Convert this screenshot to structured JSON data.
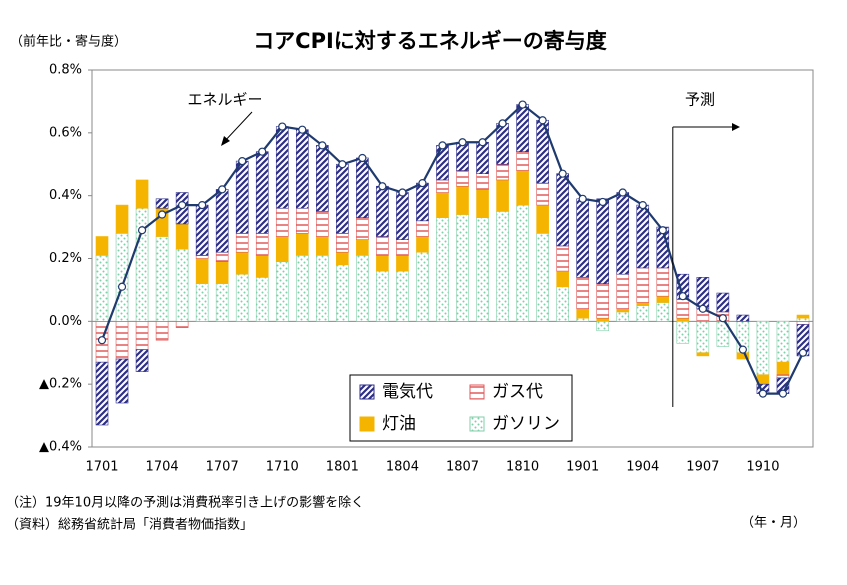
{
  "chart_data": {
    "type": "stacked-bar-line",
    "title": "コアCPIに対するエネルギーの寄与度",
    "y_unit_label": "（前年比・寄与度）",
    "x_unit_label": "（年・月）",
    "annotations": [
      "エネルギー",
      "予測"
    ],
    "notes": [
      "（注）19年10月以降の予測は消費税率引き上げの影響を除く",
      "（資料）総務省統計局「消費者物価指数」"
    ],
    "categories": [
      "1701",
      null,
      null,
      "1704",
      null,
      null,
      "1707",
      null,
      null,
      "1710",
      null,
      null,
      "1801",
      null,
      null,
      "1804",
      null,
      null,
      "1807",
      null,
      null,
      "1810",
      null,
      null,
      "1901",
      null,
      null,
      "1904",
      null,
      null,
      "1907",
      null,
      null,
      "1910",
      null,
      null
    ],
    "series": [
      {
        "name": "ガソリン",
        "color": "#7fcfa8",
        "values": [
          0.21,
          0.28,
          0.36,
          0.27,
          0.23,
          0.12,
          0.12,
          0.15,
          0.14,
          0.19,
          0.21,
          0.21,
          0.18,
          0.21,
          0.16,
          0.16,
          0.22,
          0.33,
          0.34,
          0.33,
          0.35,
          0.37,
          0.28,
          0.11,
          0.01,
          -0.03,
          0.03,
          0.05,
          0.06,
          -0.07,
          -0.1,
          -0.08,
          -0.1,
          -0.17,
          -0.13,
          0.01
        ]
      },
      {
        "name": "灯油",
        "color": "#f5b400",
        "values": [
          0.06,
          0.09,
          0.09,
          0.09,
          0.08,
          0.08,
          0.07,
          0.07,
          0.07,
          0.08,
          0.07,
          0.06,
          0.04,
          0.05,
          0.05,
          0.05,
          0.05,
          0.08,
          0.09,
          0.09,
          0.1,
          0.11,
          0.09,
          0.05,
          0.03,
          0.01,
          0.01,
          0.01,
          0.02,
          0.01,
          -0.01,
          0.0,
          -0.02,
          -0.03,
          -0.04,
          0.01
        ]
      },
      {
        "name": "ガス代",
        "color": "#e05a5a",
        "values": [
          -0.13,
          -0.12,
          -0.09,
          -0.06,
          -0.02,
          0.01,
          0.03,
          0.06,
          0.07,
          0.09,
          0.08,
          0.08,
          0.06,
          0.07,
          0.06,
          0.05,
          0.05,
          0.04,
          0.05,
          0.05,
          0.05,
          0.06,
          0.07,
          0.08,
          0.1,
          0.11,
          0.11,
          0.11,
          0.09,
          0.06,
          0.04,
          0.03,
          0.0,
          0.0,
          -0.01,
          -0.01
        ]
      },
      {
        "name": "電気代",
        "color": "#2e2e8a",
        "values": [
          -0.2,
          -0.14,
          -0.07,
          0.03,
          0.1,
          0.16,
          0.2,
          0.23,
          0.26,
          0.26,
          0.25,
          0.21,
          0.22,
          0.19,
          0.16,
          0.15,
          0.12,
          0.11,
          0.09,
          0.1,
          0.13,
          0.15,
          0.2,
          0.23,
          0.25,
          0.27,
          0.26,
          0.2,
          0.13,
          0.08,
          0.1,
          0.06,
          0.02,
          -0.03,
          -0.05,
          -0.1
        ]
      }
    ],
    "line": {
      "name": "エネルギー",
      "color": "#1f3a6e",
      "values": [
        -0.06,
        0.11,
        0.29,
        0.34,
        0.37,
        0.37,
        0.42,
        0.51,
        0.54,
        0.62,
        0.61,
        0.56,
        0.5,
        0.52,
        0.43,
        0.41,
        0.44,
        0.56,
        0.57,
        0.57,
        0.63,
        0.69,
        0.64,
        0.47,
        0.39,
        0.38,
        0.41,
        0.37,
        0.29,
        0.08,
        0.04,
        0.01,
        -0.09,
        -0.23,
        -0.23,
        -0.1
      ]
    },
    "ylim": [
      -0.4,
      0.8
    ],
    "yticks": [
      {
        "value": 0.8,
        "label": "0.8%"
      },
      {
        "value": 0.6,
        "label": "0.6%"
      },
      {
        "value": 0.4,
        "label": "0.4%"
      },
      {
        "value": 0.2,
        "label": "0.2%"
      },
      {
        "value": 0,
        "label": "0.0%"
      },
      {
        "value": -0.2,
        "label": "▲0.2%"
      },
      {
        "value": -0.4,
        "label": "▲0.4%"
      }
    ]
  }
}
